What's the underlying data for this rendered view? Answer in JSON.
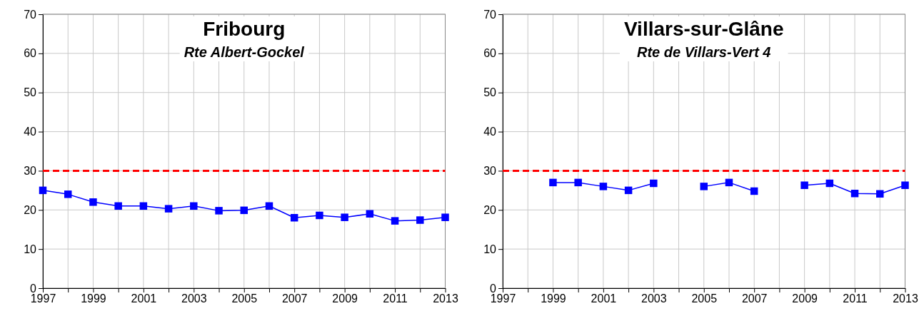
{
  "chart_data": [
    {
      "type": "line",
      "title": "Fribourg",
      "subtitle": "Rte Albert-Gockel",
      "x": [
        1997,
        1998,
        1999,
        2000,
        2001,
        2002,
        2003,
        2004,
        2005,
        2006,
        2007,
        2008,
        2009,
        2010,
        2011,
        2012,
        2013
      ],
      "series": [
        {
          "color": "#0000ff",
          "values": [
            25,
            24,
            22,
            21,
            21,
            20.3,
            21,
            19.8,
            19.9,
            21,
            18,
            18.6,
            18.1,
            19,
            17.2,
            17.4,
            18.1
          ]
        }
      ],
      "xlim": [
        1997,
        2013
      ],
      "xticks": [
        1997,
        {
          "value": 1998,
          "label": null
        },
        1999,
        {
          "value": 2000,
          "label": null
        },
        2001,
        {
          "value": 2002,
          "label": null
        },
        2003,
        {
          "value": 2004,
          "label": null
        },
        2005,
        {
          "value": 2006,
          "label": null
        },
        2007,
        {
          "value": 2008,
          "label": null
        },
        2009,
        {
          "value": 2010,
          "label": null
        },
        2011,
        {
          "value": 2012,
          "label": null
        },
        2013
      ],
      "ylim": [
        0,
        70
      ],
      "yticks": [
        0,
        10,
        20,
        30,
        40,
        50,
        60,
        70
      ],
      "ref_lines": [
        {
          "axis": "y",
          "value": 30,
          "color": "#ff0000",
          "line_style": "dashed"
        }
      ],
      "grid": true,
      "marker": "square",
      "line_style": "solid"
    },
    {
      "type": "line",
      "title": "Villars-sur-Glâne",
      "subtitle": "Rte de Villars-Vert 4",
      "series": [
        {
          "color": "#0000ff",
          "x": [
            1999,
            2000,
            2001,
            2002,
            2003,
            2004,
            2005,
            2006,
            2007,
            2008,
            2009,
            2010,
            2011,
            2012,
            2013
          ],
          "values": [
            27,
            27,
            26,
            25,
            26.8,
            null,
            26,
            27,
            24.8,
            null,
            26.3,
            26.8,
            24.2,
            24.1,
            26.3
          ]
        }
      ],
      "xlim": [
        1997,
        2013
      ],
      "xticks": [
        1997,
        {
          "value": 1998,
          "label": null
        },
        1999,
        {
          "value": 2000,
          "label": null
        },
        2001,
        {
          "value": 2002,
          "label": null
        },
        2003,
        {
          "value": 2004,
          "label": null
        },
        2005,
        {
          "value": 2006,
          "label": null
        },
        2007,
        {
          "value": 2008,
          "label": null
        },
        2009,
        {
          "value": 2010,
          "label": null
        },
        2011,
        {
          "value": 2012,
          "label": null
        },
        2013
      ],
      "ylim": [
        0,
        70
      ],
      "yticks": [
        0,
        10,
        20,
        30,
        40,
        50,
        60,
        70
      ],
      "ref_lines": [
        {
          "axis": "y",
          "value": 30,
          "color": "#ff0000",
          "line_style": "dashed"
        }
      ],
      "grid": true,
      "marker": "square",
      "line_style": "solid"
    }
  ]
}
